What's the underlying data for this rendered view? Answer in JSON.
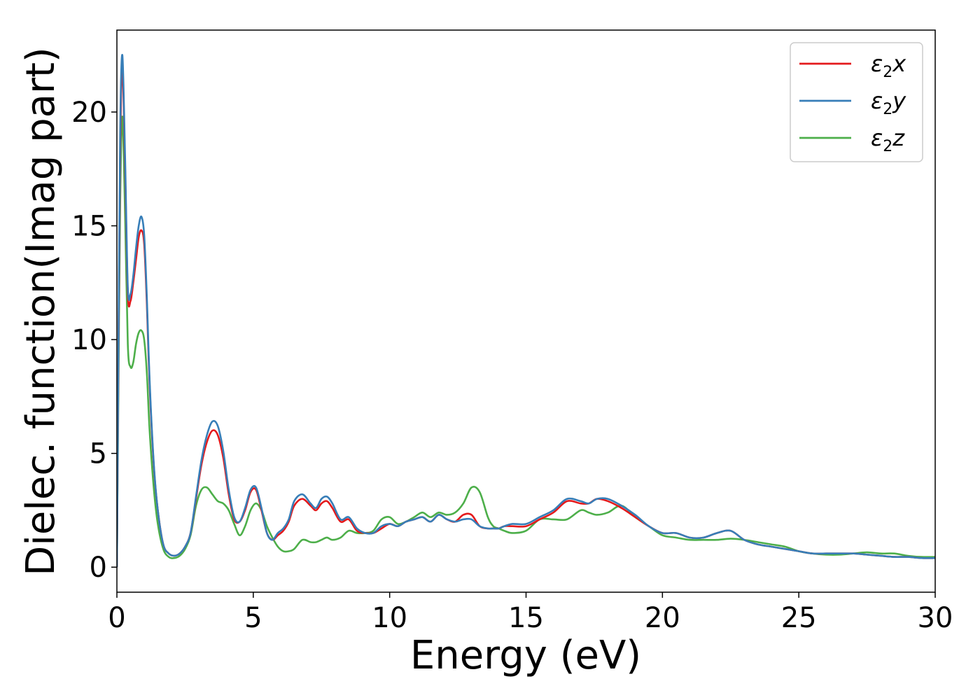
{
  "chart_data": {
    "type": "line",
    "title": "",
    "xlabel": "Energy (eV)",
    "ylabel": "Dielec. function(Imag part)",
    "xlim": [
      0,
      30
    ],
    "ylim": [
      -1.1,
      23.6
    ],
    "xticks": [
      0,
      5,
      10,
      15,
      20,
      25,
      30
    ],
    "yticks": [
      0,
      5,
      10,
      15,
      20
    ],
    "grid": false,
    "legend_position": "top-right",
    "series": [
      {
        "name": "ε2x",
        "legend": {
          "base": "ε",
          "sub": "2",
          "tail": "x"
        },
        "color": "#e41a1c",
        "x": [
          0,
          0.05,
          0.12,
          0.2,
          0.3,
          0.4,
          0.5,
          0.6,
          0.7,
          0.8,
          0.9,
          1.0,
          1.1,
          1.2,
          1.35,
          1.5,
          1.7,
          1.9,
          2.1,
          2.3,
          2.5,
          2.7,
          2.9,
          3.1,
          3.3,
          3.5,
          3.7,
          3.9,
          4.1,
          4.3,
          4.5,
          4.7,
          4.9,
          5.1,
          5.3,
          5.5,
          5.7,
          5.9,
          6.1,
          6.3,
          6.5,
          6.8,
          7.1,
          7.3,
          7.5,
          7.7,
          7.9,
          8.2,
          8.5,
          8.8,
          9.1,
          9.4,
          9.7,
          10.0,
          10.3,
          10.6,
          10.9,
          11.2,
          11.5,
          11.8,
          12.1,
          12.4,
          12.7,
          13.0,
          13.3,
          13.6,
          13.8,
          14.0,
          14.2,
          14.5,
          15.0,
          15.5,
          16.0,
          16.5,
          17.0,
          17.3,
          17.6,
          18.0,
          18.5,
          19.0,
          19.5,
          20.0,
          20.5,
          21.0,
          21.5,
          22.0,
          22.5,
          23.0,
          23.5,
          24.0,
          24.5,
          25.0,
          25.5,
          26.0,
          26.5,
          27.0,
          27.5,
          28.0,
          28.5,
          29.0,
          29.5,
          30.0
        ],
        "y": [
          0,
          8.0,
          18.0,
          22.0,
          17.5,
          12.0,
          11.7,
          12.5,
          13.5,
          14.5,
          14.8,
          14.2,
          11.5,
          8.0,
          4.5,
          2.5,
          1.0,
          0.6,
          0.5,
          0.6,
          0.9,
          1.5,
          3.0,
          4.5,
          5.5,
          6.0,
          5.8,
          4.8,
          3.2,
          2.1,
          2.0,
          2.5,
          3.3,
          3.4,
          2.5,
          1.5,
          1.2,
          1.4,
          1.6,
          2.0,
          2.7,
          3.0,
          2.7,
          2.5,
          2.8,
          2.9,
          2.6,
          2.0,
          2.1,
          1.6,
          1.5,
          1.5,
          1.7,
          1.9,
          1.8,
          2.0,
          2.1,
          2.2,
          2.0,
          2.3,
          2.1,
          2.0,
          2.3,
          2.3,
          1.8,
          1.7,
          1.7,
          1.7,
          1.8,
          1.8,
          1.8,
          2.1,
          2.4,
          2.9,
          2.8,
          2.8,
          3.0,
          2.9,
          2.6,
          2.2,
          1.8,
          1.5,
          1.5,
          1.3,
          1.3,
          1.5,
          1.6,
          1.2,
          1.0,
          0.9,
          0.8,
          0.7,
          0.6,
          0.6,
          0.6,
          0.6,
          0.55,
          0.5,
          0.45,
          0.45,
          0.4,
          0.4
        ]
      },
      {
        "name": "ε2y",
        "legend": {
          "base": "ε",
          "sub": "2",
          "tail": "y"
        },
        "color": "#377eb8",
        "x": [
          0,
          0.05,
          0.12,
          0.2,
          0.3,
          0.4,
          0.5,
          0.6,
          0.7,
          0.8,
          0.9,
          1.0,
          1.1,
          1.2,
          1.35,
          1.5,
          1.7,
          1.9,
          2.1,
          2.3,
          2.5,
          2.7,
          2.9,
          3.1,
          3.3,
          3.5,
          3.7,
          3.9,
          4.1,
          4.3,
          4.5,
          4.7,
          4.9,
          5.1,
          5.3,
          5.5,
          5.7,
          5.9,
          6.1,
          6.3,
          6.5,
          6.8,
          7.1,
          7.3,
          7.5,
          7.7,
          7.9,
          8.2,
          8.5,
          8.8,
          9.1,
          9.4,
          9.7,
          10.0,
          10.3,
          10.6,
          10.9,
          11.2,
          11.5,
          11.8,
          12.1,
          12.4,
          12.7,
          13.0,
          13.3,
          13.6,
          13.8,
          14.0,
          14.2,
          14.5,
          15.0,
          15.5,
          16.0,
          16.5,
          17.0,
          17.3,
          17.6,
          18.0,
          18.5,
          19.0,
          19.5,
          20.0,
          20.5,
          21.0,
          21.5,
          22.0,
          22.5,
          23.0,
          23.5,
          24.0,
          24.5,
          25.0,
          25.5,
          26.0,
          26.5,
          27.0,
          27.5,
          28.0,
          28.5,
          29.0,
          29.5,
          30.0
        ],
        "y": [
          0,
          8.5,
          19.0,
          22.5,
          18.0,
          12.3,
          12.0,
          12.8,
          14.0,
          15.0,
          15.4,
          14.6,
          11.8,
          8.2,
          4.6,
          2.5,
          1.0,
          0.6,
          0.5,
          0.6,
          0.9,
          1.5,
          3.1,
          4.7,
          5.8,
          6.4,
          6.2,
          5.1,
          3.4,
          2.2,
          2.0,
          2.6,
          3.4,
          3.5,
          2.6,
          1.5,
          1.2,
          1.5,
          1.7,
          2.1,
          2.9,
          3.2,
          2.8,
          2.6,
          3.0,
          3.1,
          2.8,
          2.1,
          2.2,
          1.7,
          1.5,
          1.5,
          1.8,
          1.9,
          1.8,
          2.0,
          2.1,
          2.2,
          2.0,
          2.3,
          2.1,
          2.0,
          2.1,
          2.1,
          1.8,
          1.7,
          1.7,
          1.7,
          1.8,
          1.9,
          1.9,
          2.2,
          2.5,
          3.0,
          2.9,
          2.8,
          3.0,
          3.0,
          2.7,
          2.3,
          1.8,
          1.5,
          1.5,
          1.3,
          1.3,
          1.5,
          1.6,
          1.2,
          1.0,
          0.9,
          0.8,
          0.7,
          0.6,
          0.6,
          0.6,
          0.6,
          0.55,
          0.5,
          0.45,
          0.45,
          0.4,
          0.4
        ]
      },
      {
        "name": "ε2z",
        "legend": {
          "base": "ε",
          "sub": "2",
          "tail": "z"
        },
        "color": "#4daf4a",
        "x": [
          0,
          0.05,
          0.12,
          0.2,
          0.3,
          0.4,
          0.5,
          0.6,
          0.7,
          0.8,
          0.9,
          1.0,
          1.1,
          1.2,
          1.35,
          1.5,
          1.7,
          1.9,
          2.1,
          2.3,
          2.5,
          2.7,
          2.9,
          3.1,
          3.3,
          3.5,
          3.7,
          3.9,
          4.1,
          4.3,
          4.5,
          4.7,
          4.9,
          5.1,
          5.3,
          5.5,
          5.7,
          5.9,
          6.1,
          6.3,
          6.5,
          6.8,
          7.1,
          7.3,
          7.5,
          7.7,
          7.9,
          8.2,
          8.5,
          8.8,
          9.1,
          9.4,
          9.7,
          10.0,
          10.3,
          10.6,
          10.9,
          11.2,
          11.5,
          11.8,
          12.1,
          12.4,
          12.7,
          13.0,
          13.3,
          13.6,
          13.8,
          14.0,
          14.2,
          14.5,
          15.0,
          15.5,
          16.0,
          16.5,
          17.0,
          17.3,
          17.6,
          18.0,
          18.5,
          19.0,
          19.5,
          20.0,
          20.5,
          21.0,
          21.5,
          22.0,
          22.5,
          23.0,
          23.5,
          24.0,
          24.5,
          25.0,
          25.5,
          26.0,
          26.5,
          27.0,
          27.5,
          28.0,
          28.5,
          29.0,
          29.5,
          30.0
        ],
        "y": [
          0,
          7.0,
          16.0,
          19.8,
          15.5,
          9.8,
          8.8,
          9.0,
          9.8,
          10.3,
          10.4,
          10.0,
          8.5,
          6.0,
          3.5,
          1.9,
          0.8,
          0.45,
          0.4,
          0.5,
          0.8,
          1.4,
          2.7,
          3.4,
          3.5,
          3.2,
          2.9,
          2.8,
          2.5,
          1.9,
          1.4,
          1.8,
          2.5,
          2.8,
          2.5,
          1.8,
          1.3,
          0.9,
          0.7,
          0.7,
          0.8,
          1.2,
          1.1,
          1.1,
          1.2,
          1.3,
          1.2,
          1.3,
          1.6,
          1.5,
          1.5,
          1.6,
          2.1,
          2.2,
          1.9,
          2.0,
          2.2,
          2.4,
          2.2,
          2.4,
          2.3,
          2.4,
          2.8,
          3.5,
          3.3,
          2.2,
          1.8,
          1.7,
          1.6,
          1.5,
          1.6,
          2.1,
          2.1,
          2.1,
          2.5,
          2.4,
          2.3,
          2.4,
          2.7,
          2.2,
          1.8,
          1.4,
          1.3,
          1.2,
          1.2,
          1.2,
          1.25,
          1.2,
          1.1,
          1.0,
          0.9,
          0.7,
          0.6,
          0.55,
          0.55,
          0.6,
          0.65,
          0.6,
          0.6,
          0.5,
          0.45,
          0.45
        ]
      }
    ]
  }
}
